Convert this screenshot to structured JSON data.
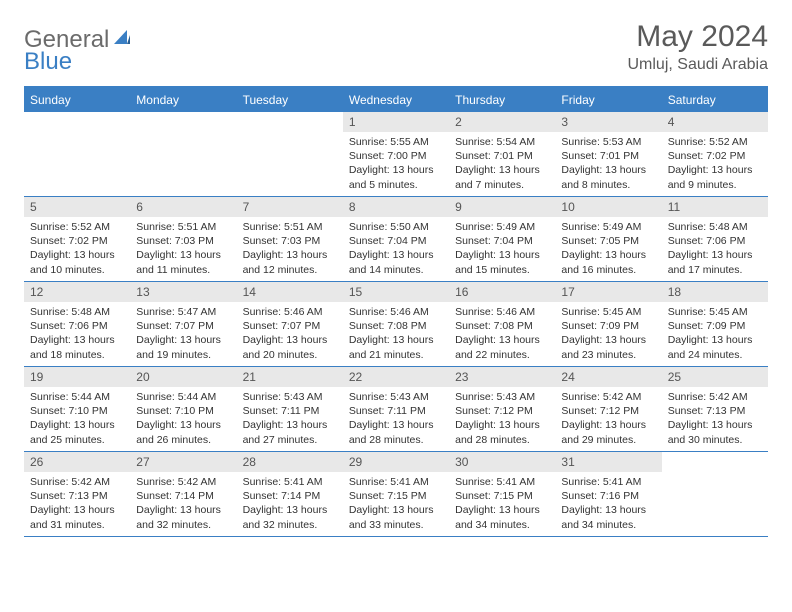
{
  "logo": {
    "text1": "General",
    "text2": "Blue"
  },
  "title": "May 2024",
  "location": "Umluj, Saudi Arabia",
  "colors": {
    "accent": "#3a7fc4",
    "header_bg": "#3a7fc4",
    "header_text": "#ffffff",
    "daynum_bg": "#e8e8e8",
    "daynum_text": "#555555",
    "body_text": "#333333",
    "logo_gray": "#6b6b6b",
    "title_gray": "#5a5a5a",
    "background": "#ffffff"
  },
  "day_names": [
    "Sunday",
    "Monday",
    "Tuesday",
    "Wednesday",
    "Thursday",
    "Friday",
    "Saturday"
  ],
  "weeks": [
    [
      null,
      null,
      null,
      {
        "n": "1",
        "sunrise": "5:55 AM",
        "sunset": "7:00 PM",
        "daylight": "13 hours and 5 minutes."
      },
      {
        "n": "2",
        "sunrise": "5:54 AM",
        "sunset": "7:01 PM",
        "daylight": "13 hours and 7 minutes."
      },
      {
        "n": "3",
        "sunrise": "5:53 AM",
        "sunset": "7:01 PM",
        "daylight": "13 hours and 8 minutes."
      },
      {
        "n": "4",
        "sunrise": "5:52 AM",
        "sunset": "7:02 PM",
        "daylight": "13 hours and 9 minutes."
      }
    ],
    [
      {
        "n": "5",
        "sunrise": "5:52 AM",
        "sunset": "7:02 PM",
        "daylight": "13 hours and 10 minutes."
      },
      {
        "n": "6",
        "sunrise": "5:51 AM",
        "sunset": "7:03 PM",
        "daylight": "13 hours and 11 minutes."
      },
      {
        "n": "7",
        "sunrise": "5:51 AM",
        "sunset": "7:03 PM",
        "daylight": "13 hours and 12 minutes."
      },
      {
        "n": "8",
        "sunrise": "5:50 AM",
        "sunset": "7:04 PM",
        "daylight": "13 hours and 14 minutes."
      },
      {
        "n": "9",
        "sunrise": "5:49 AM",
        "sunset": "7:04 PM",
        "daylight": "13 hours and 15 minutes."
      },
      {
        "n": "10",
        "sunrise": "5:49 AM",
        "sunset": "7:05 PM",
        "daylight": "13 hours and 16 minutes."
      },
      {
        "n": "11",
        "sunrise": "5:48 AM",
        "sunset": "7:06 PM",
        "daylight": "13 hours and 17 minutes."
      }
    ],
    [
      {
        "n": "12",
        "sunrise": "5:48 AM",
        "sunset": "7:06 PM",
        "daylight": "13 hours and 18 minutes."
      },
      {
        "n": "13",
        "sunrise": "5:47 AM",
        "sunset": "7:07 PM",
        "daylight": "13 hours and 19 minutes."
      },
      {
        "n": "14",
        "sunrise": "5:46 AM",
        "sunset": "7:07 PM",
        "daylight": "13 hours and 20 minutes."
      },
      {
        "n": "15",
        "sunrise": "5:46 AM",
        "sunset": "7:08 PM",
        "daylight": "13 hours and 21 minutes."
      },
      {
        "n": "16",
        "sunrise": "5:46 AM",
        "sunset": "7:08 PM",
        "daylight": "13 hours and 22 minutes."
      },
      {
        "n": "17",
        "sunrise": "5:45 AM",
        "sunset": "7:09 PM",
        "daylight": "13 hours and 23 minutes."
      },
      {
        "n": "18",
        "sunrise": "5:45 AM",
        "sunset": "7:09 PM",
        "daylight": "13 hours and 24 minutes."
      }
    ],
    [
      {
        "n": "19",
        "sunrise": "5:44 AM",
        "sunset": "7:10 PM",
        "daylight": "13 hours and 25 minutes."
      },
      {
        "n": "20",
        "sunrise": "5:44 AM",
        "sunset": "7:10 PM",
        "daylight": "13 hours and 26 minutes."
      },
      {
        "n": "21",
        "sunrise": "5:43 AM",
        "sunset": "7:11 PM",
        "daylight": "13 hours and 27 minutes."
      },
      {
        "n": "22",
        "sunrise": "5:43 AM",
        "sunset": "7:11 PM",
        "daylight": "13 hours and 28 minutes."
      },
      {
        "n": "23",
        "sunrise": "5:43 AM",
        "sunset": "7:12 PM",
        "daylight": "13 hours and 28 minutes."
      },
      {
        "n": "24",
        "sunrise": "5:42 AM",
        "sunset": "7:12 PM",
        "daylight": "13 hours and 29 minutes."
      },
      {
        "n": "25",
        "sunrise": "5:42 AM",
        "sunset": "7:13 PM",
        "daylight": "13 hours and 30 minutes."
      }
    ],
    [
      {
        "n": "26",
        "sunrise": "5:42 AM",
        "sunset": "7:13 PM",
        "daylight": "13 hours and 31 minutes."
      },
      {
        "n": "27",
        "sunrise": "5:42 AM",
        "sunset": "7:14 PM",
        "daylight": "13 hours and 32 minutes."
      },
      {
        "n": "28",
        "sunrise": "5:41 AM",
        "sunset": "7:14 PM",
        "daylight": "13 hours and 32 minutes."
      },
      {
        "n": "29",
        "sunrise": "5:41 AM",
        "sunset": "7:15 PM",
        "daylight": "13 hours and 33 minutes."
      },
      {
        "n": "30",
        "sunrise": "5:41 AM",
        "sunset": "7:15 PM",
        "daylight": "13 hours and 34 minutes."
      },
      {
        "n": "31",
        "sunrise": "5:41 AM",
        "sunset": "7:16 PM",
        "daylight": "13 hours and 34 minutes."
      },
      null
    ]
  ],
  "labels": {
    "sunrise": "Sunrise:",
    "sunset": "Sunset:",
    "daylight": "Daylight:"
  }
}
